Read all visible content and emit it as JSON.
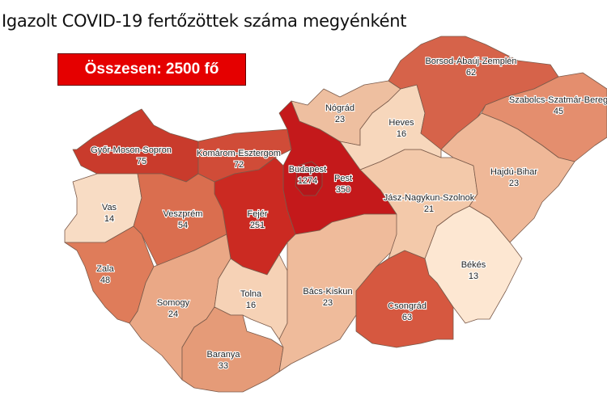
{
  "title": "Igazolt COVID-19 fertőzöttek száma megyénként",
  "total_label": "Összesen: 2500 fő",
  "counties": {
    "gyor": {
      "name": "Győr-Moson-Sopron",
      "value": "75",
      "color": "#c93b2c"
    },
    "komarom": {
      "name": "Komárom-Esztergom",
      "value": "72",
      "color": "#d04c38"
    },
    "budapest": {
      "name": "Budapest",
      "value": "1274",
      "color": "#b5161a"
    },
    "pest": {
      "name": "Pest",
      "value": "350",
      "color": "#c4191b"
    },
    "fejer": {
      "name": "Fejér",
      "value": "251",
      "color": "#cb2a22"
    },
    "vas": {
      "name": "Vas",
      "value": "14",
      "color": "#f8dcc4"
    },
    "veszprem": {
      "name": "Veszprém",
      "value": "54",
      "color": "#da6e4f"
    },
    "zala": {
      "name": "Zala",
      "value": "48",
      "color": "#df7c5a"
    },
    "somogy": {
      "name": "Somogy",
      "value": "24",
      "color": "#eaa886"
    },
    "tolna": {
      "name": "Tolna",
      "value": "16",
      "color": "#f6d2b6"
    },
    "baranya": {
      "name": "Baranya",
      "value": "33",
      "color": "#e59b78"
    },
    "bacs": {
      "name": "Bács-Kiskun",
      "value": "23",
      "color": "#efbb9b"
    },
    "csongrad": {
      "name": "Csongrád",
      "value": "63",
      "color": "#d65840"
    },
    "bekes": {
      "name": "Békés",
      "value": "13",
      "color": "#fde7d2"
    },
    "jasz": {
      "name": "Jász-Nagykun-Szolnok",
      "value": "21",
      "color": "#f3c9aa"
    },
    "nograd": {
      "name": "Nógrád",
      "value": "23",
      "color": "#eebfa0"
    },
    "heves": {
      "name": "Heves",
      "value": "16",
      "color": "#f7d7bc"
    },
    "borsod": {
      "name": "Borsod-Abaúj-Zemplén",
      "value": "62",
      "color": "#d6634a"
    },
    "szabolcs": {
      "name": "Szabolcs-Szatmár-Bereg",
      "value": "45",
      "color": "#e48e6e"
    },
    "hajdu": {
      "name": "Hajdú-Bihar",
      "value": "23",
      "color": "#efb898"
    }
  }
}
